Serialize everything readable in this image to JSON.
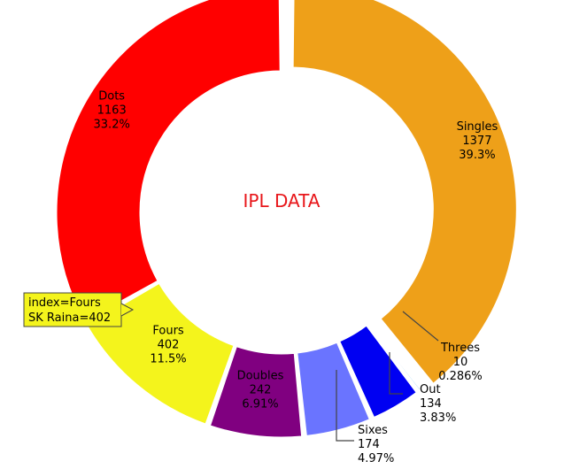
{
  "chart_data": {
    "type": "pie",
    "donut": true,
    "center_title": "IPL DATA",
    "center_title_color": "#e8161a",
    "slices": [
      {
        "name": "Singles",
        "value": 1377,
        "percent": "39.3%",
        "color": "#eea019",
        "pulled": true
      },
      {
        "name": "Threes",
        "value": 10,
        "percent": "0.286%",
        "color": "#5ab4f0",
        "pulled": false
      },
      {
        "name": "Out",
        "value": 134,
        "percent": "3.83%",
        "color": "#0000f2",
        "pulled": false
      },
      {
        "name": "Sixes",
        "value": 174,
        "percent": "4.97%",
        "color": "#6a74ff",
        "pulled": false
      },
      {
        "name": "Doubles",
        "value": 242,
        "percent": "6.91%",
        "color": "#800080",
        "pulled": false
      },
      {
        "name": "Fours",
        "value": 402,
        "percent": "11.5%",
        "color": "#f4f41c",
        "pulled": false
      },
      {
        "name": "Dots",
        "value": 1163,
        "percent": "33.2%",
        "color": "#ff0000",
        "pulled": false
      }
    ],
    "tooltip": {
      "line1": "index=Fours",
      "line2": "SK Raina=402",
      "bg_color": "#f4f41c",
      "border_color": "#444444"
    }
  }
}
